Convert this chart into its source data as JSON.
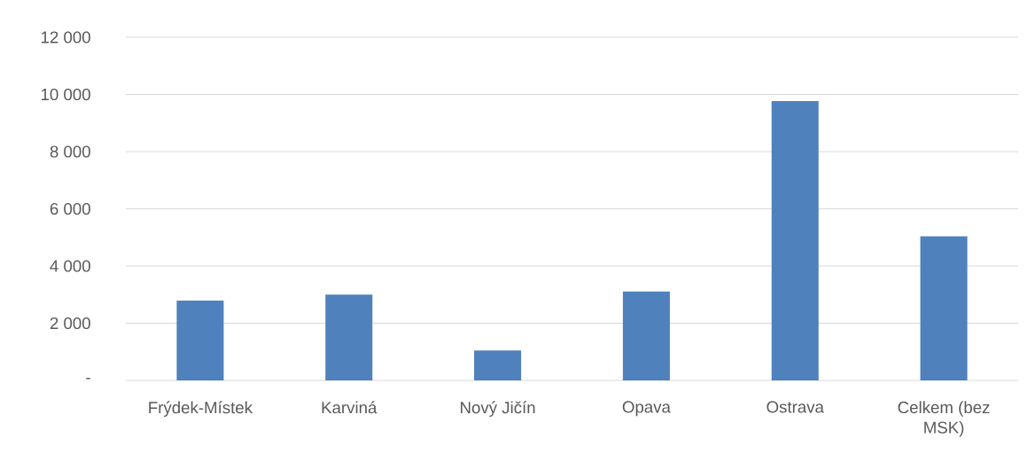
{
  "chart_data": {
    "type": "bar",
    "categories": [
      "Frýdek-Místek",
      "Karviná",
      "Nový Jičín",
      "Opava",
      "Ostrava",
      "Celkem (bez MSK)"
    ],
    "values": [
      2790,
      3000,
      1050,
      3110,
      9770,
      5040
    ],
    "color": "#4f81bd",
    "ylim": [
      0,
      12000
    ],
    "yticks": [
      {
        "value": 0,
        "label": "-"
      },
      {
        "value": 2000,
        "label": "2 000"
      },
      {
        "value": 4000,
        "label": "4 000"
      },
      {
        "value": 6000,
        "label": "6 000"
      },
      {
        "value": 8000,
        "label": "8 000"
      },
      {
        "value": 10000,
        "label": "10 000"
      },
      {
        "value": 12000,
        "label": "12 000"
      }
    ],
    "grid": "y"
  }
}
